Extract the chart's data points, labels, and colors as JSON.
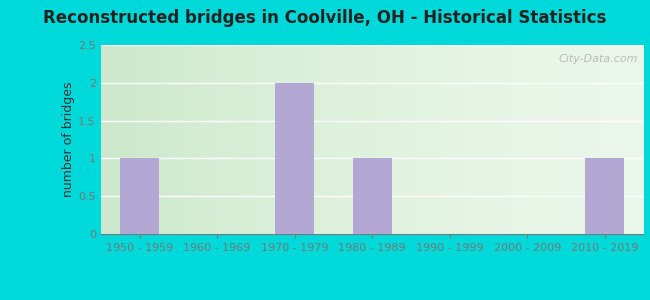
{
  "title": "Reconstructed bridges in Coolville, OH - Historical Statistics",
  "ylabel": "number of bridges",
  "categories": [
    "1950 - 1959",
    "1960 - 1969",
    "1970 - 1979",
    "1980 - 1989",
    "1990 - 1999",
    "2000 - 2009",
    "2010 - 2019"
  ],
  "values": [
    1,
    0,
    2,
    1,
    0,
    0,
    1
  ],
  "bar_color": "#b3a8d4",
  "bar_edge_color": "#b3a8d4",
  "ylim": [
    0,
    2.5
  ],
  "yticks": [
    0,
    0.5,
    1,
    1.5,
    2,
    2.5
  ],
  "background_outer": "#00d9d9",
  "background_inner_top": "#e8f5e8",
  "background_inner_bottom": "#f5fff5",
  "grid_color": "#ffffff",
  "title_fontsize": 12,
  "ylabel_fontsize": 9,
  "tick_fontsize": 8,
  "tick_color": "#777777",
  "watermark_text": "City-Data.com"
}
